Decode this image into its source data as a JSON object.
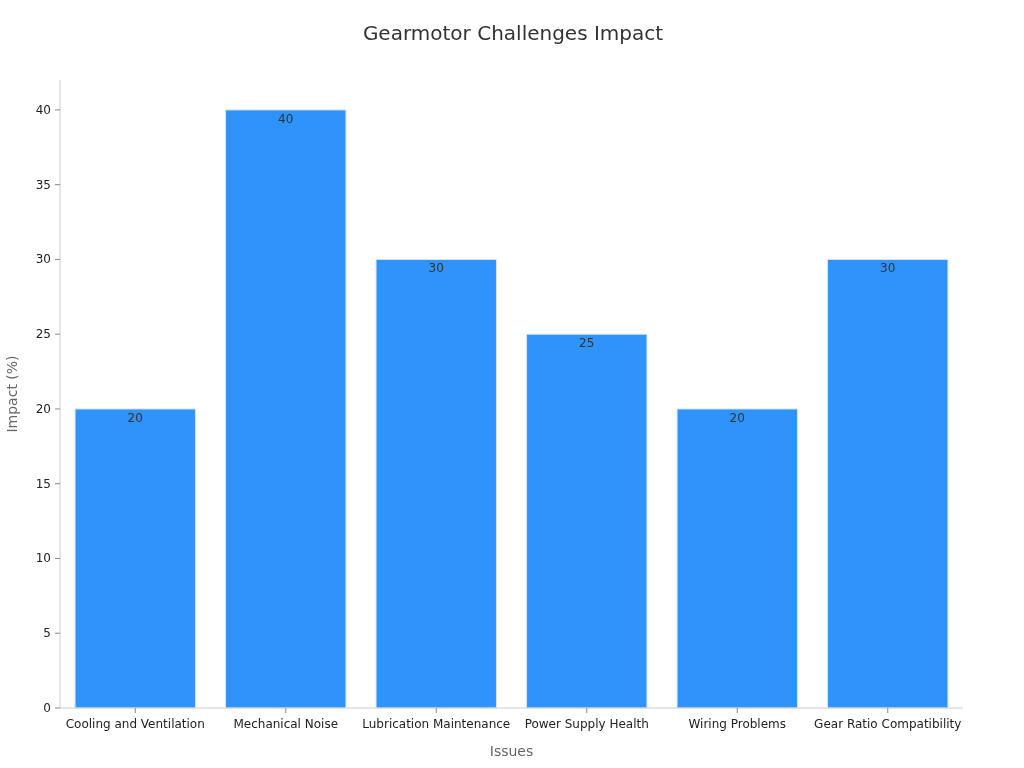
{
  "chart_data": {
    "type": "bar",
    "title": "Gearmotor Challenges Impact",
    "xlabel": "Issues",
    "ylabel": "Impact (%)",
    "categories": [
      "Cooling and Ventilation",
      "Mechanical Noise",
      "Lubrication Maintenance",
      "Power Supply Health",
      "Wiring Problems",
      "Gear Ratio Compatibility"
    ],
    "values": [
      20,
      40,
      30,
      25,
      20,
      30
    ],
    "color": "#2e93fa",
    "ylim": [
      0,
      42
    ],
    "yticks": [
      0,
      5,
      10,
      15,
      20,
      25,
      30,
      35,
      40
    ],
    "grid": false,
    "data_labels": true
  }
}
